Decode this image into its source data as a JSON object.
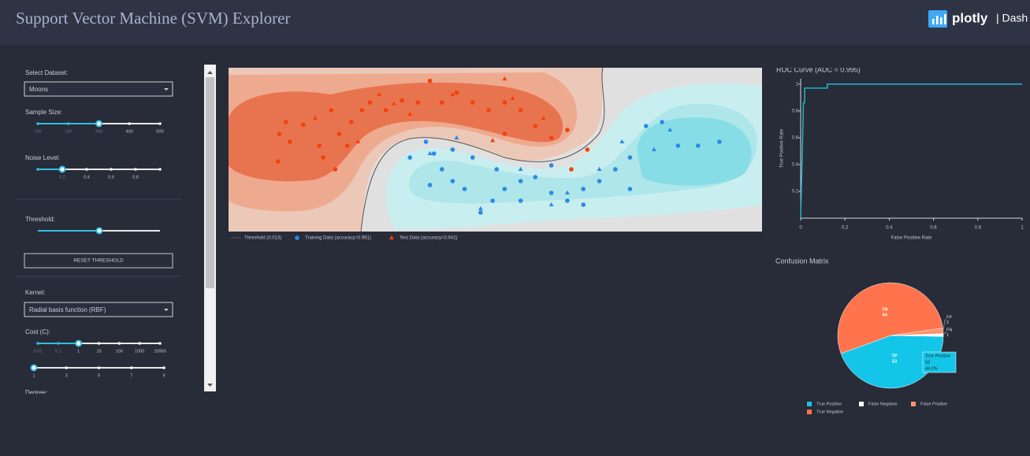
{
  "header": {
    "title": "Support Vector Machine (SVM) Explorer",
    "brand": "plotly",
    "brand_sub": "| Dash"
  },
  "controls": {
    "dataset": {
      "label": "Select Dataset:",
      "value": "Moons"
    },
    "sample_size": {
      "label": "Sample Size:",
      "marks": [
        100,
        200,
        300,
        400,
        500
      ],
      "value": 300
    },
    "noise": {
      "label": "Noise Level:",
      "marks": [
        null,
        0.2,
        0.4,
        0.6,
        0.8,
        null
      ],
      "value": 0.2
    },
    "threshold": {
      "label": "Threshold:"
    },
    "reset_button": "RESET THRESHOLD",
    "kernel": {
      "label": "Kernel:",
      "value": "Radial basis function (RBF)"
    },
    "cost": {
      "label": "Cost (C):",
      "marks": [
        0.01,
        0.1,
        1,
        10,
        100,
        1000,
        10000
      ],
      "value": 1
    },
    "cost_power": {
      "marks": [
        1,
        3,
        5,
        7,
        9
      ],
      "value": 1
    },
    "degree": {
      "label": "Degree:"
    }
  },
  "chart_data": [
    {
      "type": "scatter",
      "xlim": [
        -1.5,
        2.5
      ],
      "ylim": [
        -1,
        1.5
      ],
      "threshold": {
        "name": "Threshold (0.013)",
        "color": "#555555"
      },
      "series": [
        {
          "name": "Training Data (accuracy=0.961)",
          "symbol": "circle",
          "legend_color": "#2a8ae6",
          "points": [
            {
              "color": "#f2420c",
              "x": [
                -1.12,
                -1.04,
                -1.13,
                -1.07,
                -0.94,
                -0.82,
                -0.73,
                -0.67,
                -0.58,
                -0.5,
                -0.44,
                -0.32,
                -0.2,
                -0.08,
                0.01,
                0.1,
                0.21,
                0.33,
                0.45,
                0.57,
                0.69,
                0.8,
                0.92,
                1.04,
                1.19,
                1.07,
                0.57,
                -0.7,
                -0.79,
                -0.61
              ],
              "y": [
                0.49,
                0.37,
                0.07,
                0.67,
                0.63,
                0.31,
                0.85,
                0.49,
                0.67,
                0.85,
                0.97,
                0.85,
                1.0,
                0.97,
                1.3,
                0.97,
                1.12,
                0.97,
                0.85,
                0.97,
                0.85,
                0.61,
                0.43,
                0.55,
                0.25,
                -0.05,
                0.49,
                -0.05,
                0.13,
                0.31
              ]
            },
            {
              "color": "#2a8ae6",
              "x": [
                -0.02,
                0.04,
                0.1,
                0.18,
                0.27,
                0.39,
                0.48,
                0.57,
                0.69,
                0.8,
                0.92,
                1.04,
                1.16,
                1.28,
                1.4,
                1.51,
                1.63,
                1.75,
                1.87,
                2.02,
                2.18,
                1.51,
                1.16,
                0.51,
                0.33,
                -0.14,
                0.01,
                0.18,
                0.92,
                0.69
              ],
              "y": [
                0.37,
                0.19,
                -0.05,
                -0.23,
                -0.35,
                -0.71,
                -0.53,
                -0.35,
                -0.23,
                -0.17,
                -0.41,
                -0.53,
                -0.35,
                -0.23,
                -0.05,
                0.13,
                0.61,
                0.67,
                0.31,
                0.31,
                0.37,
                -0.35,
                -0.59,
                -0.05,
                0.13,
                0.13,
                -0.29,
                0.25,
                0.01,
                -0.53
              ]
            }
          ]
        },
        {
          "name": "Test Data (accuracy=0.942)",
          "symbol": "triangle",
          "legend_color": "#f2420c",
          "points": [
            {
              "color": "#f2420c",
              "x": [
                -0.37,
                -0.26,
                -0.14,
                0.18,
                0.63,
                0.86,
                -0.85,
                -0.53,
                0.48,
                0.57
              ],
              "y": [
                1.09,
                0.95,
                0.79,
                1.09,
                1.03,
                0.73,
                0.73,
                0.37,
                0.39,
                1.33
              ]
            },
            {
              "color": "#2a8ae6",
              "x": [
                0.01,
                0.21,
                0.69,
                1.04,
                1.45,
                1.69,
                1.81,
                0.92,
                0.39,
                1.28
              ],
              "y": [
                0.19,
                0.43,
                -0.05,
                -0.41,
                0.37,
                0.25,
                0.55,
                -0.59,
                -0.65,
                -0.05
              ]
            }
          ]
        }
      ]
    },
    {
      "type": "line",
      "title": "ROC Curve (AUC = 0.995)",
      "x_label": "False Positive Rate",
      "y_label": "True Positive Rate",
      "x": [
        0,
        0.012,
        0.012,
        0.018,
        0.018,
        0.12,
        0.12,
        1
      ],
      "series": [
        {
          "color": "#1fb4d0",
          "values": [
            0,
            0.8,
            0.86,
            0.86,
            0.97,
            0.97,
            1,
            1
          ]
        }
      ],
      "xlim": [
        0,
        1
      ],
      "ylim": [
        0,
        1.04
      ],
      "xticks": [
        0,
        0.2,
        0.4,
        0.6,
        0.8,
        1
      ],
      "yticks": [
        0.2,
        0.4,
        0.6,
        0.8,
        1
      ]
    },
    {
      "type": "pie",
      "title": "Confusion Matrix",
      "categories": [
        "TP",
        "FN",
        "FP",
        "TN"
      ],
      "names": [
        "True Positive",
        "False Negative",
        "False Positive",
        "True Negative"
      ],
      "values": [
        53,
        1,
        2,
        64
      ],
      "colors": [
        "#13c6e9",
        "#ffffff",
        "#ff916d",
        "#ff744c"
      ],
      "hover_percent": "44.2%"
    }
  ]
}
